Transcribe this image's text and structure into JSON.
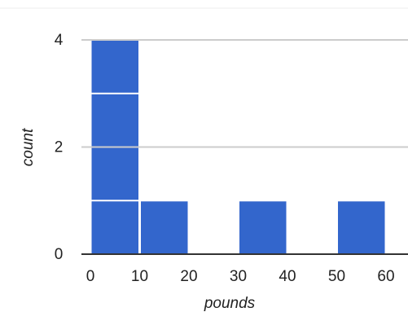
{
  "chart_data": {
    "type": "bar",
    "title": "",
    "xlabel": "pounds",
    "ylabel": "count",
    "x_ticks": [
      "0",
      "10",
      "20",
      "30",
      "40",
      "50",
      "60"
    ],
    "y_ticks": [
      "0",
      "2",
      "4"
    ],
    "xlim": [
      0,
      60
    ],
    "ylim": [
      0,
      4
    ],
    "grid": true,
    "legend": "none",
    "bins": [
      {
        "start": 0,
        "end": 10,
        "count": 4
      },
      {
        "start": 10,
        "end": 20,
        "count": 1
      },
      {
        "start": 30,
        "end": 40,
        "count": 1
      },
      {
        "start": 50,
        "end": 60,
        "count": 1
      }
    ],
    "bar_color": "#3366cc",
    "grid_color": "#cccccc"
  }
}
